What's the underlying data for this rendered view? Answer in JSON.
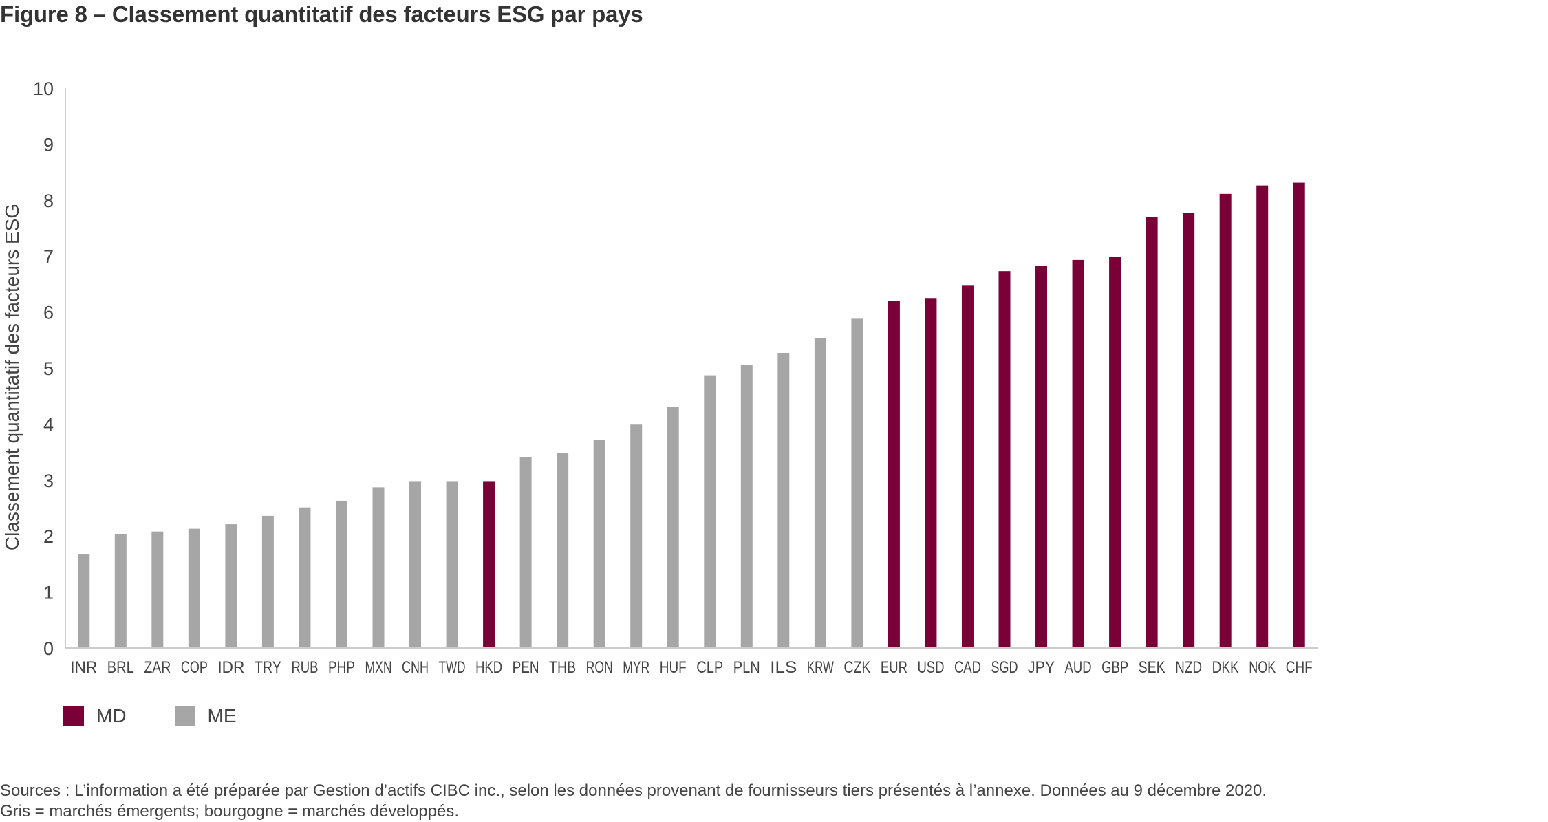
{
  "title": "Figure 8 – Classement quantitatif des facteurs ESG par pays",
  "colors": {
    "md": "#7a0038",
    "me": "#a6a6a6",
    "axis": "#cccccc"
  },
  "chart_data": {
    "type": "bar",
    "title": "",
    "xlabel": "",
    "ylabel": "Classement quantitatif des facteurs ESG",
    "ylim": [
      0,
      10
    ],
    "yticks": [
      0,
      1,
      2,
      3,
      4,
      5,
      6,
      7,
      8,
      9,
      10
    ],
    "grid": false,
    "legend_position": "bottom-left",
    "categories": [
      "INR",
      "BRL",
      "ZAR",
      "COP",
      "IDR",
      "TRY",
      "RUB",
      "PHP",
      "MXN",
      "CNH",
      "TWD",
      "HKD",
      "PEN",
      "THB",
      "RON",
      "MYR",
      "HUF",
      "CLP",
      "PLN",
      "ILS",
      "KRW",
      "CZK",
      "EUR",
      "USD",
      "CAD",
      "SGD",
      "JPY",
      "AUD",
      "GBP",
      "SEK",
      "NZD",
      "DKK",
      "NOK",
      "CHF"
    ],
    "values": [
      1.67,
      2.03,
      2.08,
      2.13,
      2.21,
      2.36,
      2.51,
      2.63,
      2.87,
      2.98,
      2.98,
      2.98,
      3.41,
      3.48,
      3.72,
      3.99,
      4.3,
      4.87,
      5.05,
      5.27,
      5.53,
      5.88,
      6.2,
      6.25,
      6.47,
      6.73,
      6.83,
      6.93,
      6.99,
      7.7,
      7.77,
      8.11,
      8.26,
      8.31
    ],
    "groups": [
      "ME",
      "ME",
      "ME",
      "ME",
      "ME",
      "ME",
      "ME",
      "ME",
      "ME",
      "ME",
      "ME",
      "MD",
      "ME",
      "ME",
      "ME",
      "ME",
      "ME",
      "ME",
      "ME",
      "ME",
      "ME",
      "ME",
      "MD",
      "MD",
      "MD",
      "MD",
      "MD",
      "MD",
      "MD",
      "MD",
      "MD",
      "MD",
      "MD",
      "MD"
    ],
    "legend": [
      {
        "key": "MD",
        "label": "MD",
        "color": "#7a0038"
      },
      {
        "key": "ME",
        "label": "ME",
        "color": "#a6a6a6"
      }
    ]
  },
  "sources": {
    "line1": "Sources : L’information a été préparée par Gestion d’actifs CIBC inc., selon les données provenant de fournisseurs tiers présentés à l’annexe. Données au 9 décembre 2020.",
    "line2": "Gris = marchés émergents; bourgogne = marchés développés."
  }
}
